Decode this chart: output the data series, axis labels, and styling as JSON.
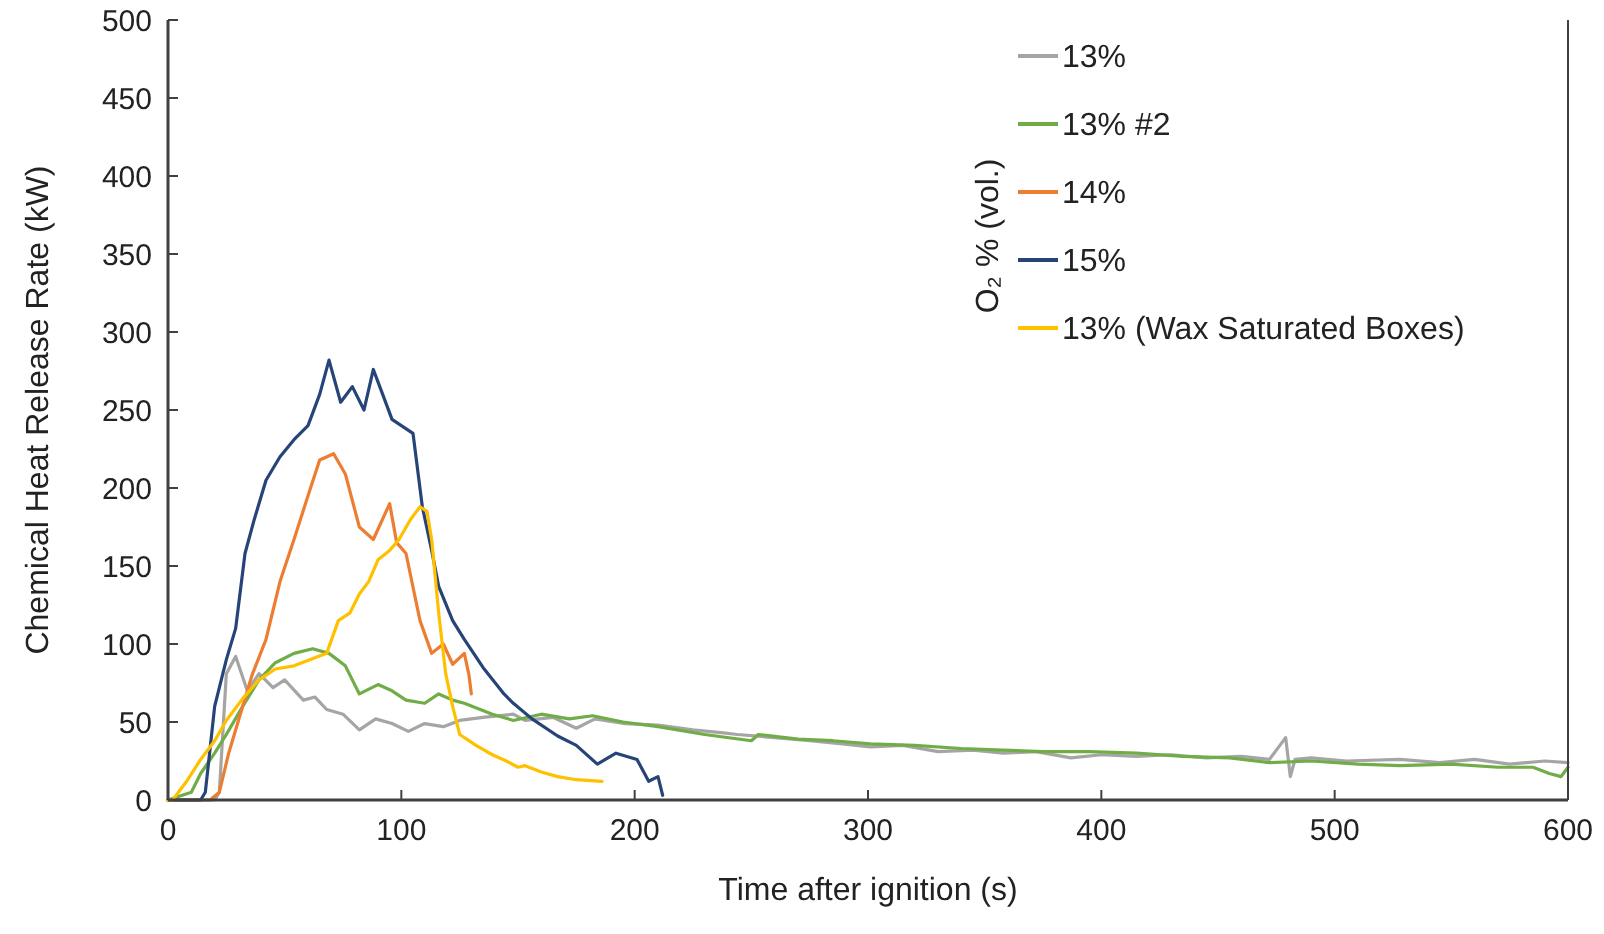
{
  "chart_data": {
    "type": "line",
    "xlabel": "Time after ignition (s)",
    "ylabel": "Chemical Heat Release Rate (kW)",
    "legend_title": "O₂ % (vol.)",
    "legend": "top right",
    "grid": false,
    "marker": "none",
    "line_style": "solid",
    "xlim": [
      0,
      600
    ],
    "xticks": [
      0,
      100,
      200,
      300,
      400,
      500,
      600
    ],
    "ylim": [
      0,
      500
    ],
    "yticks": [
      0,
      50,
      100,
      150,
      200,
      250,
      300,
      350,
      400,
      450,
      500
    ],
    "series": [
      {
        "name": "13%",
        "color": "#a5a5a5",
        "x": [
          0,
          20,
          22,
          25,
          29,
          34,
          39,
          45,
          50,
          58,
          63,
          68,
          75,
          82,
          89,
          96,
          103,
          110,
          118,
          125,
          135,
          148,
          153,
          165,
          175,
          183,
          196,
          210,
          225,
          238,
          244,
          260,
          275,
          289,
          301,
          315,
          330,
          345,
          358,
          372,
          387,
          400,
          415,
          430,
          445,
          460,
          472,
          479,
          481,
          483,
          490,
          505,
          528,
          545,
          560,
          575,
          590,
          600
        ],
        "values": [
          0,
          0,
          5,
          81,
          92,
          70,
          81,
          72,
          77,
          64,
          66,
          58,
          55,
          45,
          52,
          49,
          44,
          49,
          47,
          51,
          53,
          55,
          51,
          53,
          46,
          52,
          49,
          48,
          45,
          43,
          42,
          40,
          38,
          36,
          34,
          35,
          31,
          32,
          30,
          31,
          27,
          29,
          28,
          29,
          27,
          28,
          26,
          40,
          15,
          26,
          27,
          25,
          26,
          24,
          26,
          23,
          25,
          24
        ]
      },
      {
        "name": "13% #2",
        "color": "#70ad47",
        "x": [
          0,
          10,
          14,
          20,
          25,
          32,
          39,
          46,
          54,
          62,
          69,
          76,
          82,
          90,
          96,
          102,
          110,
          116,
          122,
          127,
          139,
          148,
          160,
          172,
          182,
          195,
          210,
          230,
          250,
          253,
          270,
          285,
          301,
          320,
          340,
          358,
          375,
          395,
          415,
          435,
          455,
          472,
          490,
          510,
          528,
          550,
          570,
          585,
          592,
          597,
          600
        ],
        "values": [
          0,
          5,
          17,
          30,
          42,
          60,
          77,
          88,
          94,
          97,
          94,
          86,
          68,
          74,
          70,
          64,
          62,
          68,
          64,
          62,
          55,
          51,
          55,
          52,
          54,
          50,
          47,
          42,
          38,
          42,
          39,
          38,
          36,
          35,
          33,
          32,
          31,
          31,
          30,
          28,
          27,
          24,
          25,
          23,
          22,
          23,
          21,
          21,
          17,
          15,
          21
        ]
      },
      {
        "name": "14%",
        "color": "#ed7d31",
        "x": [
          0,
          18,
          22,
          26,
          31,
          36,
          42,
          48,
          54,
          60,
          65,
          71,
          76,
          82,
          88,
          95,
          98,
          102,
          108,
          113,
          118,
          122,
          127,
          129,
          130
        ],
        "values": [
          0,
          0,
          5,
          30,
          55,
          80,
          103,
          140,
          167,
          195,
          218,
          222,
          209,
          175,
          167,
          190,
          165,
          158,
          115,
          94,
          100,
          87,
          94,
          80,
          68
        ]
      },
      {
        "name": "15%",
        "color": "#264478",
        "x": [
          0,
          14,
          16,
          20,
          25,
          29,
          33,
          37,
          42,
          48,
          54,
          60,
          65,
          69,
          74,
          79,
          84,
          88,
          92,
          96,
          100,
          105,
          109,
          113,
          116,
          122,
          127,
          135,
          144,
          148,
          156,
          167,
          175,
          184,
          192,
          201,
          206,
          210,
          212
        ],
        "values": [
          0,
          0,
          5,
          60,
          90,
          110,
          158,
          180,
          205,
          220,
          231,
          240,
          260,
          282,
          255,
          265,
          250,
          276,
          260,
          244,
          240,
          235,
          188,
          160,
          137,
          115,
          103,
          85,
          68,
          62,
          52,
          41,
          35,
          23,
          30,
          26,
          12,
          15,
          3
        ]
      },
      {
        "name": "13% (Wax Saturated Boxes)",
        "color": "#ffc000",
        "x": [
          0,
          2,
          8,
          14,
          20,
          25,
          32,
          39,
          46,
          54,
          61,
          68,
          73,
          78,
          82,
          86,
          90,
          95,
          99,
          104,
          108,
          111,
          113,
          116,
          119,
          122,
          125,
          132,
          139,
          145,
          150,
          153,
          160,
          167,
          175,
          186
        ],
        "values": [
          0,
          0,
          12,
          26,
          38,
          51,
          65,
          77,
          84,
          86,
          90,
          94,
          115,
          120,
          132,
          140,
          154,
          160,
          167,
          180,
          188,
          185,
          167,
          120,
          81,
          60,
          42,
          35,
          29,
          25,
          21,
          22,
          18,
          15,
          13,
          12
        ]
      }
    ]
  }
}
